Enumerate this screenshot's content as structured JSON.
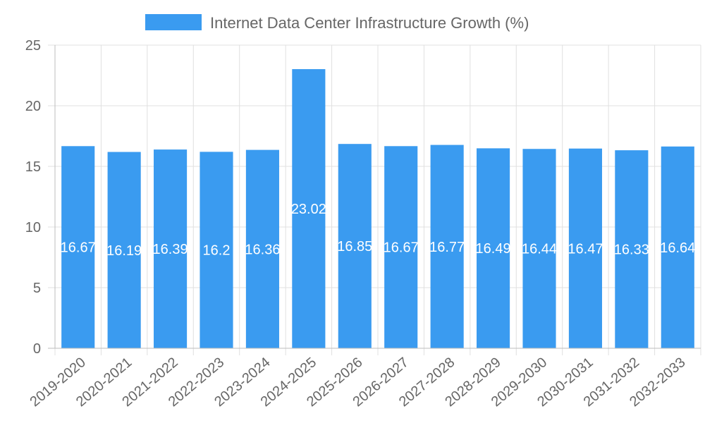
{
  "chart_data": {
    "type": "bar",
    "title": "",
    "xlabel": "",
    "ylabel": "",
    "ylim": [
      0,
      25
    ],
    "yticks": [
      0,
      5,
      10,
      15,
      20,
      25
    ],
    "grid": true,
    "legend_position": "top-center",
    "categories": [
      "2019-2020",
      "2020-2021",
      "2021-2022",
      "2022-2023",
      "2023-2024",
      "2024-2025",
      "2025-2026",
      "2026-2027",
      "2027-2028",
      "2028-2029",
      "2029-2030",
      "2030-2031",
      "2031-2032",
      "2032-2033"
    ],
    "series": [
      {
        "name": "Internet Data Center Infrastructure Growth (%)",
        "color": "#3a9bf0",
        "values": [
          16.67,
          16.19,
          16.39,
          16.2,
          16.36,
          23.02,
          16.85,
          16.67,
          16.77,
          16.49,
          16.44,
          16.47,
          16.33,
          16.64
        ]
      }
    ]
  }
}
